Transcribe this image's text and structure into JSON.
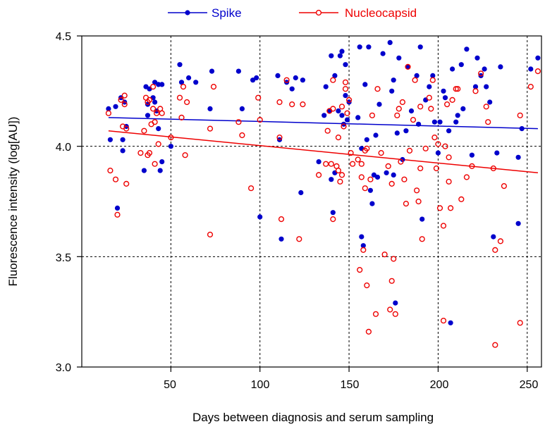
{
  "chart_data": {
    "type": "scatter",
    "xlabel": "Days between diagnosis and serum sampling",
    "ylabel": "Fluorescence intensity (log[AU])",
    "xlim": [
      0,
      258
    ],
    "ylim": [
      3.0,
      4.5
    ],
    "x_ticks": [
      "50",
      "100",
      "150",
      "200",
      "250"
    ],
    "y_ticks": [
      "3.0",
      "3.5",
      "4.0",
      "4.5"
    ],
    "grid": true,
    "legend_position": "top",
    "series": [
      {
        "name": "Spike",
        "color": "#0000cc",
        "marker": "filled-circle",
        "trend": [
          [
            15,
            4.13
          ],
          [
            256,
            4.08
          ]
        ],
        "points": [
          [
            15,
            4.17
          ],
          [
            16,
            4.03
          ],
          [
            19,
            4.18
          ],
          [
            20,
            3.72
          ],
          [
            22,
            4.22
          ],
          [
            23,
            4.03
          ],
          [
            23,
            3.98
          ],
          [
            24,
            4.2
          ],
          [
            25,
            4.09
          ],
          [
            35,
            3.89
          ],
          [
            36,
            4.27
          ],
          [
            37,
            4.19
          ],
          [
            37,
            4.14
          ],
          [
            38,
            4.26
          ],
          [
            40,
            4.22
          ],
          [
            41,
            4.29
          ],
          [
            41,
            4.2
          ],
          [
            42,
            4.16
          ],
          [
            43,
            4.28
          ],
          [
            43,
            4.08
          ],
          [
            44,
            3.89
          ],
          [
            45,
            4.28
          ],
          [
            45,
            3.93
          ],
          [
            50,
            4.0
          ],
          [
            55,
            4.37
          ],
          [
            56,
            4.29
          ],
          [
            60,
            4.31
          ],
          [
            64,
            4.29
          ],
          [
            72,
            4.17
          ],
          [
            73,
            4.34
          ],
          [
            88,
            4.34
          ],
          [
            90,
            4.17
          ],
          [
            96,
            4.3
          ],
          [
            98,
            4.31
          ],
          [
            100,
            3.68
          ],
          [
            110,
            4.32
          ],
          [
            111,
            4.03
          ],
          [
            112,
            3.58
          ],
          [
            115,
            4.29
          ],
          [
            118,
            4.26
          ],
          [
            120,
            4.31
          ],
          [
            123,
            3.79
          ],
          [
            124,
            4.3
          ],
          [
            133,
            3.93
          ],
          [
            136,
            4.14
          ],
          [
            137,
            4.27
          ],
          [
            139,
            4.16
          ],
          [
            140,
            4.41
          ],
          [
            140,
            3.85
          ],
          [
            141,
            3.7
          ],
          [
            142,
            3.88
          ],
          [
            142,
            4.32
          ],
          [
            144,
            4.16
          ],
          [
            145,
            4.41
          ],
          [
            146,
            4.43
          ],
          [
            146,
            4.14
          ],
          [
            147,
            4.1
          ],
          [
            148,
            4.37
          ],
          [
            148,
            4.23
          ],
          [
            149,
            4.12
          ],
          [
            150,
            4.2
          ],
          [
            155,
            4.13
          ],
          [
            156,
            4.45
          ],
          [
            157,
            3.99
          ],
          [
            157,
            3.59
          ],
          [
            158,
            3.55
          ],
          [
            159,
            4.28
          ],
          [
            160,
            4.03
          ],
          [
            161,
            4.45
          ],
          [
            162,
            3.8
          ],
          [
            163,
            3.74
          ],
          [
            164,
            3.87
          ],
          [
            165,
            4.05
          ],
          [
            166,
            3.86
          ],
          [
            167,
            4.19
          ],
          [
            169,
            4.42
          ],
          [
            171,
            3.88
          ],
          [
            173,
            4.47
          ],
          [
            174,
            4.25
          ],
          [
            175,
            4.3
          ],
          [
            175,
            3.87
          ],
          [
            176,
            3.29
          ],
          [
            177,
            4.06
          ],
          [
            178,
            4.4
          ],
          [
            180,
            3.94
          ],
          [
            182,
            4.07
          ],
          [
            183,
            4.36
          ],
          [
            185,
            4.16
          ],
          [
            188,
            4.32
          ],
          [
            189,
            4.1
          ],
          [
            190,
            4.45
          ],
          [
            191,
            3.67
          ],
          [
            193,
            4.21
          ],
          [
            195,
            4.27
          ],
          [
            197,
            4.32
          ],
          [
            198,
            4.11
          ],
          [
            200,
            3.97
          ],
          [
            201,
            4.11
          ],
          [
            203,
            4.25
          ],
          [
            204,
            4.22
          ],
          [
            206,
            4.07
          ],
          [
            207,
            3.2
          ],
          [
            208,
            4.35
          ],
          [
            210,
            4.11
          ],
          [
            211,
            4.14
          ],
          [
            213,
            4.37
          ],
          [
            214,
            4.17
          ],
          [
            216,
            4.44
          ],
          [
            219,
            3.96
          ],
          [
            221,
            4.27
          ],
          [
            222,
            4.4
          ],
          [
            224,
            4.32
          ],
          [
            226,
            4.35
          ],
          [
            227,
            4.27
          ],
          [
            229,
            4.2
          ],
          [
            231,
            3.59
          ],
          [
            233,
            3.97
          ],
          [
            235,
            4.36
          ],
          [
            245,
            3.95
          ],
          [
            245,
            3.65
          ],
          [
            247,
            4.08
          ],
          [
            252,
            4.35
          ],
          [
            256,
            4.4
          ]
        ]
      },
      {
        "name": "Nucleocapsid",
        "color": "#ee0000",
        "marker": "open-circle",
        "trend": [
          [
            15,
            4.07
          ],
          [
            256,
            3.88
          ]
        ],
        "points": [
          [
            15,
            4.15
          ],
          [
            16,
            3.89
          ],
          [
            19,
            3.85
          ],
          [
            20,
            3.69
          ],
          [
            22,
            4.21
          ],
          [
            23,
            4.09
          ],
          [
            24,
            4.19
          ],
          [
            24,
            4.23
          ],
          [
            25,
            3.83
          ],
          [
            25,
            4.08
          ],
          [
            33,
            3.97
          ],
          [
            35,
            4.07
          ],
          [
            36,
            4.22
          ],
          [
            37,
            4.2
          ],
          [
            37,
            3.96
          ],
          [
            38,
            3.97
          ],
          [
            38,
            4.21
          ],
          [
            39,
            4.1
          ],
          [
            40,
            4.17
          ],
          [
            40,
            4.27
          ],
          [
            41,
            3.92
          ],
          [
            41,
            4.11
          ],
          [
            42,
            4.15
          ],
          [
            43,
            4.01
          ],
          [
            44,
            4.17
          ],
          [
            45,
            4.15
          ],
          [
            50,
            4.04
          ],
          [
            55,
            4.22
          ],
          [
            56,
            4.13
          ],
          [
            57,
            4.27
          ],
          [
            58,
            3.96
          ],
          [
            59,
            4.2
          ],
          [
            72,
            4.08
          ],
          [
            72,
            3.6
          ],
          [
            74,
            4.27
          ],
          [
            88,
            4.11
          ],
          [
            90,
            4.05
          ],
          [
            95,
            3.81
          ],
          [
            99,
            4.22
          ],
          [
            100,
            4.12
          ],
          [
            111,
            4.2
          ],
          [
            111,
            4.04
          ],
          [
            112,
            3.67
          ],
          [
            115,
            4.3
          ],
          [
            118,
            4.19
          ],
          [
            122,
            3.58
          ],
          [
            124,
            4.19
          ],
          [
            133,
            3.87
          ],
          [
            137,
            3.92
          ],
          [
            138,
            4.07
          ],
          [
            139,
            4.16
          ],
          [
            140,
            3.92
          ],
          [
            141,
            4.3
          ],
          [
            141,
            4.17
          ],
          [
            141,
            3.67
          ],
          [
            143,
            3.91
          ],
          [
            144,
            3.89
          ],
          [
            144,
            4.04
          ],
          [
            145,
            3.84
          ],
          [
            146,
            3.87
          ],
          [
            146,
            4.18
          ],
          [
            147,
            4.09
          ],
          [
            148,
            4.26
          ],
          [
            148,
            4.29
          ],
          [
            149,
            4.15
          ],
          [
            150,
            4.21
          ],
          [
            151,
            3.97
          ],
          [
            152,
            3.92
          ],
          [
            155,
            3.94
          ],
          [
            156,
            3.44
          ],
          [
            157,
            3.86
          ],
          [
            157,
            3.92
          ],
          [
            158,
            3.53
          ],
          [
            159,
            3.98
          ],
          [
            159,
            3.81
          ],
          [
            160,
            3.37
          ],
          [
            160,
            3.99
          ],
          [
            161,
            3.16
          ],
          [
            162,
            3.85
          ],
          [
            163,
            4.14
          ],
          [
            165,
            3.24
          ],
          [
            166,
            4.26
          ],
          [
            168,
            3.97
          ],
          [
            170,
            3.51
          ],
          [
            172,
            3.91
          ],
          [
            173,
            3.26
          ],
          [
            174,
            3.83
          ],
          [
            174,
            3.39
          ],
          [
            175,
            3.49
          ],
          [
            176,
            3.24
          ],
          [
            177,
            4.14
          ],
          [
            178,
            4.17
          ],
          [
            179,
            3.93
          ],
          [
            180,
            4.2
          ],
          [
            181,
            3.85
          ],
          [
            182,
            3.74
          ],
          [
            183,
            4.36
          ],
          [
            184,
            3.98
          ],
          [
            186,
            4.12
          ],
          [
            187,
            4.3
          ],
          [
            188,
            3.8
          ],
          [
            189,
            3.75
          ],
          [
            190,
            4.18
          ],
          [
            190,
            3.9
          ],
          [
            191,
            3.58
          ],
          [
            193,
            3.99
          ],
          [
            195,
            4.22
          ],
          [
            196,
            4.17
          ],
          [
            197,
            4.3
          ],
          [
            198,
            4.04
          ],
          [
            199,
            3.9
          ],
          [
            200,
            4.01
          ],
          [
            201,
            3.72
          ],
          [
            203,
            3.64
          ],
          [
            203,
            3.21
          ],
          [
            204,
            4.0
          ],
          [
            205,
            4.19
          ],
          [
            206,
            3.95
          ],
          [
            206,
            3.84
          ],
          [
            207,
            3.72
          ],
          [
            208,
            4.21
          ],
          [
            210,
            4.26
          ],
          [
            211,
            4.26
          ],
          [
            213,
            3.76
          ],
          [
            216,
            3.86
          ],
          [
            219,
            3.91
          ],
          [
            221,
            4.25
          ],
          [
            224,
            4.33
          ],
          [
            227,
            4.18
          ],
          [
            228,
            4.11
          ],
          [
            231,
            3.9
          ],
          [
            232,
            3.53
          ],
          [
            232,
            3.1
          ],
          [
            235,
            3.57
          ],
          [
            237,
            3.82
          ],
          [
            246,
            4.14
          ],
          [
            246,
            3.2
          ],
          [
            252,
            4.27
          ],
          [
            256,
            4.34
          ]
        ]
      }
    ]
  }
}
